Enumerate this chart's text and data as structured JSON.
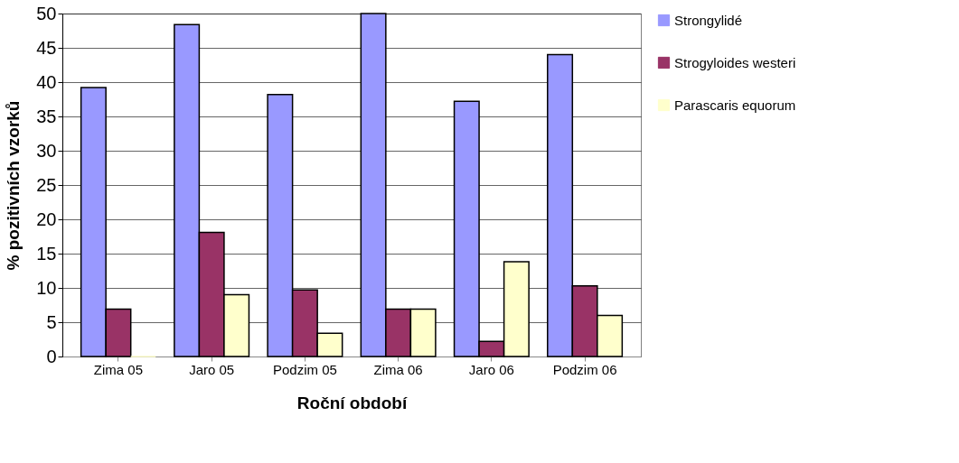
{
  "chart_data": {
    "type": "bar",
    "xlabel": "Roční období",
    "ylabel": "% pozitivních vzorků",
    "categories": [
      "Zima 05",
      "Jaro 05",
      "Podzim 05",
      "Zima 06",
      "Jaro 06",
      "Podzim 06"
    ],
    "series": [
      {
        "name": "Strongylidé",
        "color": "#9999ff",
        "values": [
          39.2,
          48.4,
          38.2,
          50,
          37.2,
          44
        ]
      },
      {
        "name": "Strogyloides westeri",
        "color": "#993366",
        "values": [
          6.9,
          18.1,
          9.7,
          6.9,
          2.2,
          10.3
        ]
      },
      {
        "name": "Parascaris equorum",
        "color": "#ffffcc",
        "values": [
          0,
          9,
          3.4,
          6.9,
          13.8,
          6
        ]
      }
    ],
    "ylim": [
      0,
      50
    ],
    "yticks": [
      0,
      5,
      10,
      15,
      20,
      25,
      30,
      35,
      40,
      45,
      50
    ],
    "grid": "y",
    "legend": "right"
  }
}
